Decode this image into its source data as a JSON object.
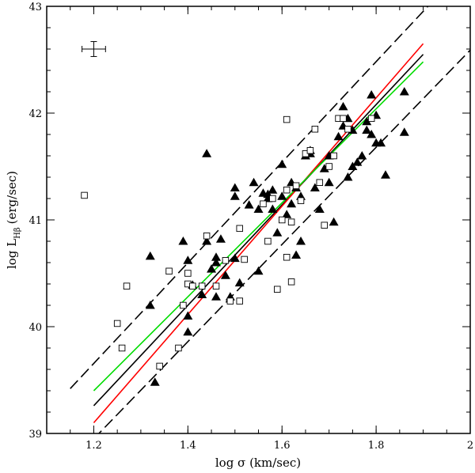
{
  "chart_data": {
    "type": "scatter",
    "xlabel": "log σ (km/sec)",
    "ylabel_main": "log L",
    "ylabel_sub": "Hβ",
    "ylabel_unit": "(erg/sec)",
    "xlim": [
      1.1,
      2.0
    ],
    "ylim": [
      39,
      43
    ],
    "xticks": [
      1.2,
      1.4,
      1.6,
      1.8,
      2.0
    ],
    "xtick_labels": [
      "1.2",
      "1.4",
      "1.6",
      "1.8",
      "2"
    ],
    "yticks": [
      39,
      40,
      41,
      42,
      43
    ],
    "ytick_labels": [
      "39",
      "40",
      "41",
      "42",
      "43"
    ],
    "grid": false,
    "error_bar": {
      "x": 1.2,
      "y": 42.6,
      "xerr": 0.025,
      "yerr": 0.07
    },
    "series": [
      {
        "marker": "filled-triangle",
        "color": "#000000",
        "points": [
          [
            1.32,
            40.66
          ],
          [
            1.32,
            40.2
          ],
          [
            1.33,
            39.48
          ],
          [
            1.39,
            40.8
          ],
          [
            1.4,
            40.62
          ],
          [
            1.4,
            40.1
          ],
          [
            1.4,
            39.95
          ],
          [
            1.41,
            40.39
          ],
          [
            1.43,
            40.3
          ],
          [
            1.44,
            40.8
          ],
          [
            1.44,
            41.62
          ],
          [
            1.45,
            40.54
          ],
          [
            1.46,
            40.65
          ],
          [
            1.46,
            40.6
          ],
          [
            1.46,
            40.28
          ],
          [
            1.47,
            40.82
          ],
          [
            1.48,
            40.48
          ],
          [
            1.49,
            40.28
          ],
          [
            1.5,
            41.3
          ],
          [
            1.5,
            41.22
          ],
          [
            1.5,
            40.64
          ],
          [
            1.51,
            40.41
          ],
          [
            1.53,
            41.14
          ],
          [
            1.54,
            41.35
          ],
          [
            1.55,
            41.1
          ],
          [
            1.55,
            40.52
          ],
          [
            1.56,
            41.25
          ],
          [
            1.57,
            41.24
          ],
          [
            1.57,
            41.2
          ],
          [
            1.58,
            41.28
          ],
          [
            1.58,
            41.1
          ],
          [
            1.59,
            40.88
          ],
          [
            1.6,
            41.52
          ],
          [
            1.6,
            41.22
          ],
          [
            1.61,
            41.05
          ],
          [
            1.62,
            41.35
          ],
          [
            1.62,
            41.15
          ],
          [
            1.63,
            40.67
          ],
          [
            1.63,
            41.3
          ],
          [
            1.64,
            40.8
          ],
          [
            1.64,
            41.22
          ],
          [
            1.65,
            41.6
          ],
          [
            1.66,
            41.62
          ],
          [
            1.66,
            41.65
          ],
          [
            1.67,
            41.3
          ],
          [
            1.68,
            41.1
          ],
          [
            1.69,
            41.48
          ],
          [
            1.7,
            41.35
          ],
          [
            1.7,
            41.6
          ],
          [
            1.71,
            40.98
          ],
          [
            1.72,
            41.78
          ],
          [
            1.73,
            41.88
          ],
          [
            1.73,
            42.06
          ],
          [
            1.74,
            41.95
          ],
          [
            1.74,
            41.4
          ],
          [
            1.75,
            41.5
          ],
          [
            1.75,
            41.84
          ],
          [
            1.76,
            41.54
          ],
          [
            1.77,
            41.6
          ],
          [
            1.78,
            41.92
          ],
          [
            1.78,
            41.84
          ],
          [
            1.79,
            42.17
          ],
          [
            1.79,
            41.8
          ],
          [
            1.8,
            41.98
          ],
          [
            1.8,
            41.72
          ],
          [
            1.81,
            41.72
          ],
          [
            1.82,
            41.42
          ],
          [
            1.86,
            42.2
          ],
          [
            1.86,
            41.82
          ]
        ]
      },
      {
        "marker": "open-square",
        "color": "#000000",
        "points": [
          [
            1.18,
            41.23
          ],
          [
            1.25,
            40.03
          ],
          [
            1.26,
            39.8
          ],
          [
            1.27,
            40.38
          ],
          [
            1.34,
            39.63
          ],
          [
            1.36,
            40.52
          ],
          [
            1.38,
            39.8
          ],
          [
            1.39,
            40.2
          ],
          [
            1.4,
            40.4
          ],
          [
            1.4,
            40.5
          ],
          [
            1.41,
            40.38
          ],
          [
            1.43,
            40.38
          ],
          [
            1.44,
            40.85
          ],
          [
            1.46,
            40.38
          ],
          [
            1.48,
            40.62
          ],
          [
            1.49,
            40.24
          ],
          [
            1.51,
            40.24
          ],
          [
            1.51,
            40.92
          ],
          [
            1.52,
            40.63
          ],
          [
            1.56,
            41.15
          ],
          [
            1.57,
            40.8
          ],
          [
            1.58,
            41.2
          ],
          [
            1.59,
            40.35
          ],
          [
            1.6,
            41.0
          ],
          [
            1.61,
            40.65
          ],
          [
            1.61,
            41.28
          ],
          [
            1.62,
            40.42
          ],
          [
            1.62,
            40.98
          ],
          [
            1.61,
            41.94
          ],
          [
            1.63,
            41.32
          ],
          [
            1.64,
            41.18
          ],
          [
            1.65,
            41.62
          ],
          [
            1.66,
            41.65
          ],
          [
            1.67,
            41.85
          ],
          [
            1.68,
            41.35
          ],
          [
            1.69,
            40.95
          ],
          [
            1.7,
            41.5
          ],
          [
            1.71,
            41.6
          ],
          [
            1.72,
            41.95
          ],
          [
            1.73,
            41.95
          ],
          [
            1.74,
            41.85
          ],
          [
            1.79,
            41.95
          ]
        ]
      }
    ],
    "lines": [
      {
        "style": "solid",
        "color": "#000000",
        "x": [
          1.2,
          1.9
        ],
        "y": [
          39.26,
          42.55
        ]
      },
      {
        "style": "solid",
        "color": "#ff0000",
        "x": [
          1.2,
          1.9
        ],
        "y": [
          39.1,
          42.65
        ]
      },
      {
        "style": "solid",
        "color": "#00dd00",
        "x": [
          1.2,
          1.9
        ],
        "y": [
          39.4,
          42.48
        ]
      },
      {
        "style": "dashed",
        "color": "#000000",
        "x": [
          1.15,
          1.91
        ],
        "y": [
          39.42,
          43.0
        ]
      },
      {
        "style": "dashed",
        "color": "#000000",
        "x": [
          1.2,
          2.0
        ],
        "y": [
          38.95,
          42.59
        ]
      }
    ]
  }
}
